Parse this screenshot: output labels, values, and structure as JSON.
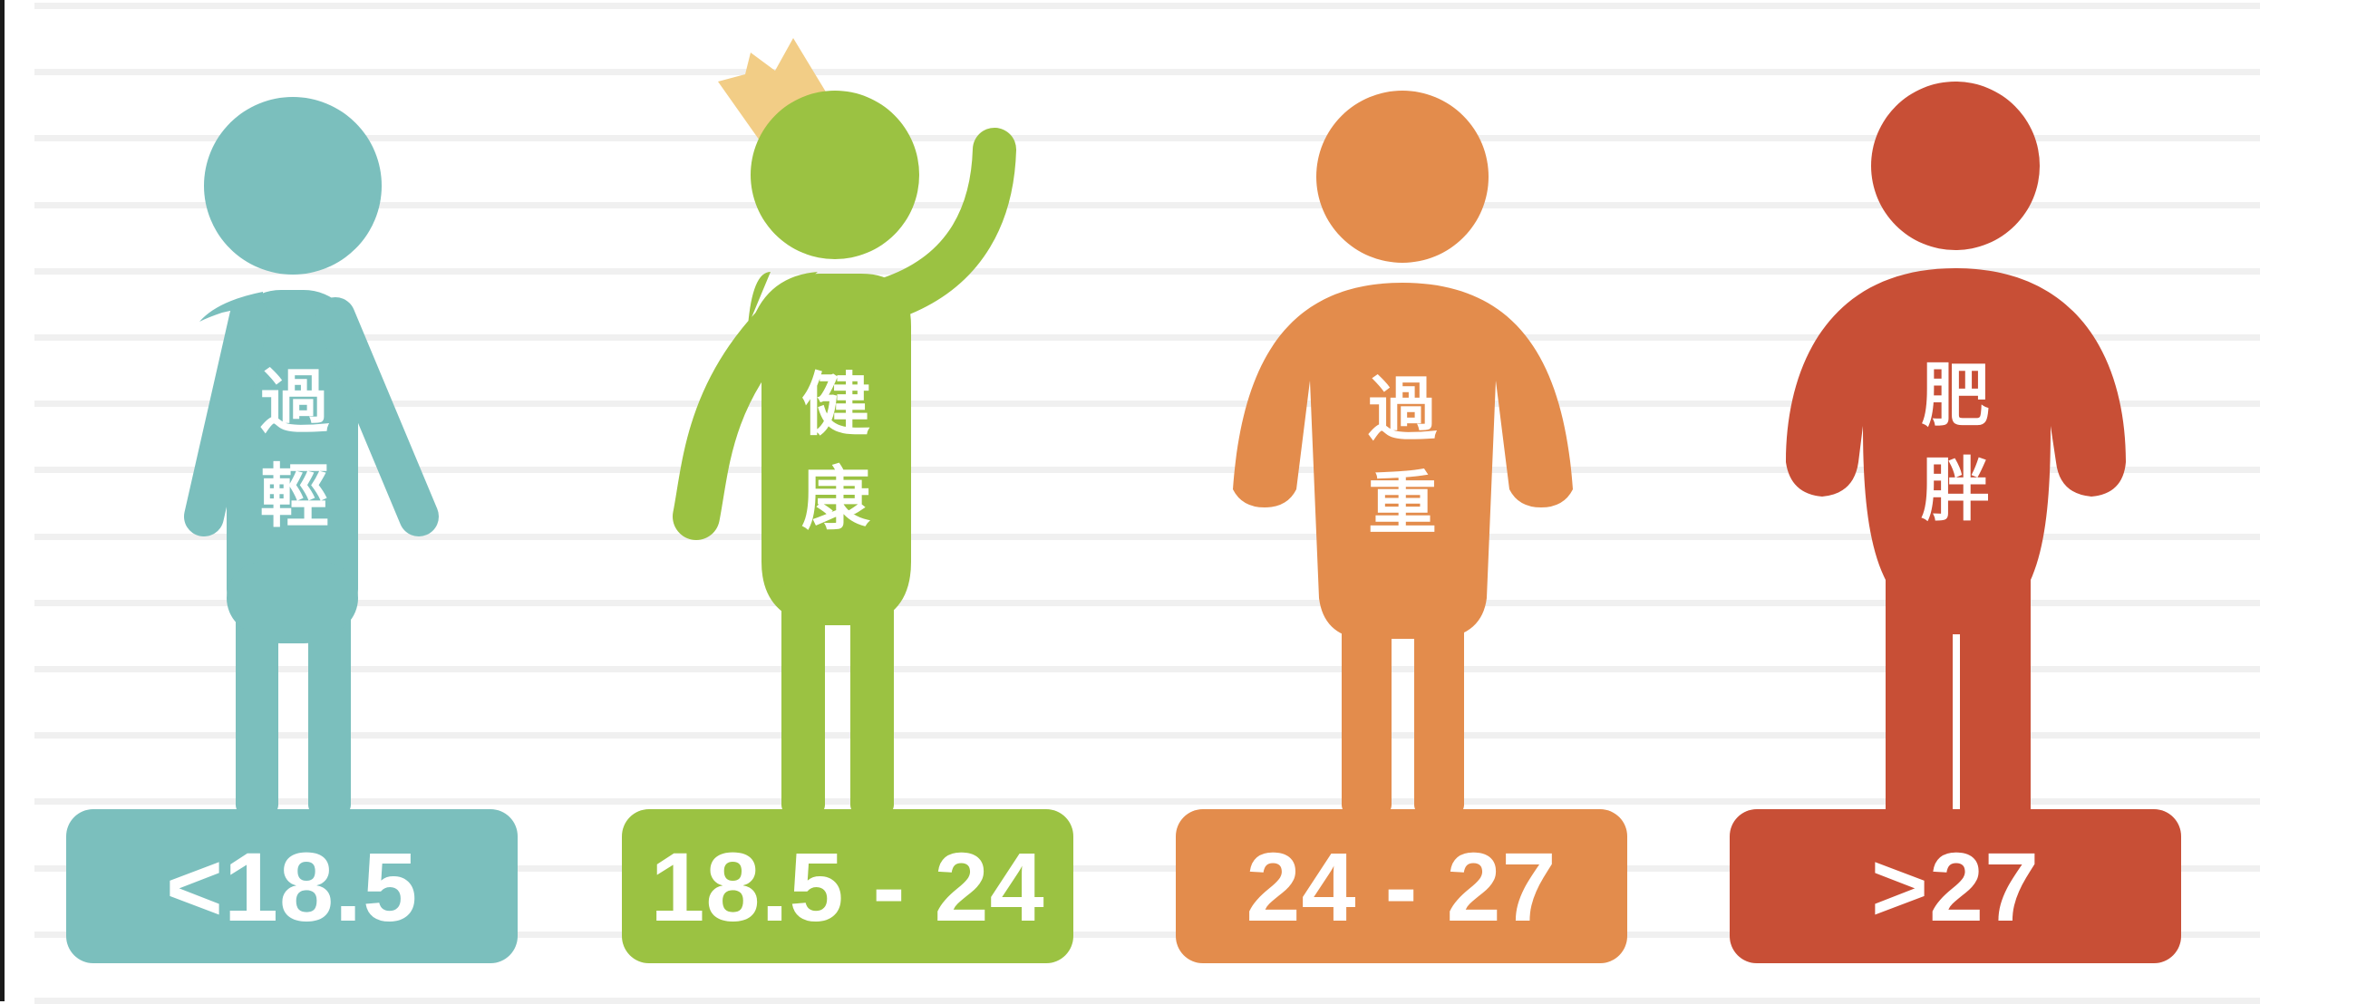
{
  "categories": [
    {
      "label_line1": "過",
      "label_line2": "輕",
      "range": "<18.5",
      "color": "#7bbfbd"
    },
    {
      "label_line1": "健",
      "label_line2": "康",
      "range": "18.5 - 24",
      "color": "#9bc242"
    },
    {
      "label_line1": "過",
      "label_line2": "重",
      "range": "24 - 27",
      "color": "#e38c4c"
    },
    {
      "label_line1": "肥",
      "label_line2": "胖",
      "range": ">27",
      "color": "#c84f36"
    }
  ],
  "crown_color": "#f2cd86"
}
